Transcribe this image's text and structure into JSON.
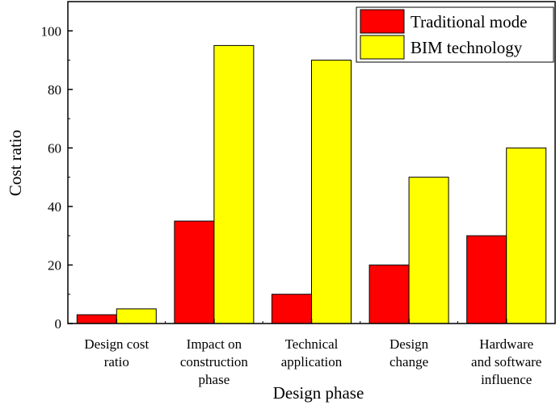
{
  "chart_data": {
    "type": "bar",
    "title": "",
    "xlabel": "Design phase",
    "ylabel": "Cost ratio",
    "ylim": [
      0,
      110
    ],
    "yticks": [
      0,
      20,
      40,
      60,
      80,
      100
    ],
    "grid": false,
    "legend_position": "top-right",
    "categories": [
      [
        "Design cost",
        "ratio"
      ],
      [
        "Impact on",
        "construction",
        "phase"
      ],
      [
        "Technical",
        "application"
      ],
      [
        "Design",
        "change"
      ],
      [
        "Hardware",
        "and software",
        "influence"
      ]
    ],
    "series": [
      {
        "name": "Traditional mode",
        "color": "#ff0000",
        "values": [
          3,
          35,
          10,
          20,
          30
        ]
      },
      {
        "name": "BIM technology",
        "color": "#ffff00",
        "values": [
          5,
          95,
          90,
          50,
          60
        ]
      }
    ]
  }
}
